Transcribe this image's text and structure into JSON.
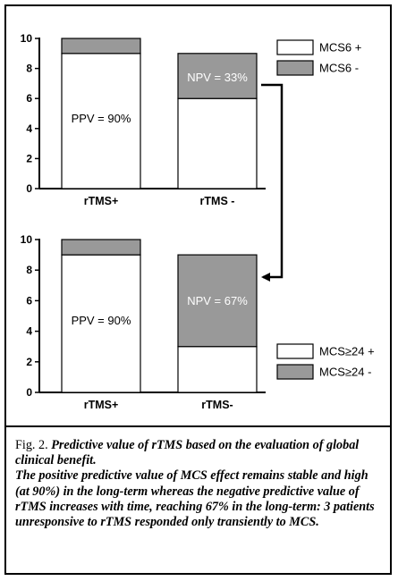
{
  "chart_data": [
    {
      "type": "bar",
      "stacked": true,
      "categories": [
        "rTMS+",
        "rTMS -"
      ],
      "series": [
        {
          "name": "MCS6 +",
          "values": [
            9,
            6
          ],
          "color": "#ffffff"
        },
        {
          "name": "MCS6 -",
          "values": [
            1,
            3
          ],
          "color": "#999999"
        }
      ],
      "ylim": [
        0,
        10
      ],
      "yticks": [
        "0",
        "2",
        "4",
        "6",
        "8",
        "10"
      ],
      "legend": "top-right",
      "annotations": [
        "PPV = 90%",
        "NPV = 33%"
      ]
    },
    {
      "type": "bar",
      "stacked": true,
      "categories": [
        "rTMS+",
        "rTMS-"
      ],
      "series": [
        {
          "name": "MCS≥24 +",
          "values": [
            9,
            3
          ],
          "color": "#ffffff"
        },
        {
          "name": "MCS≥24 -",
          "values": [
            1,
            6
          ],
          "color": "#999999"
        }
      ],
      "ylim": [
        0,
        10
      ],
      "yticks": [
        "0",
        "2",
        "4",
        "6",
        "8",
        "10"
      ],
      "legend": "bottom-right",
      "annotations": [
        "PPV = 90%",
        "NPV = 67%"
      ]
    }
  ],
  "caption": {
    "lead": "Fig. 2. ",
    "title": "Predictive value of rTMS based on the evaluation of global clinical benefit.",
    "body": "The positive predictive value of MCS effect remains stable and high (at 90%) in the long-term whereas the negative predictive value of rTMS increases with time, reaching 67% in the long-term: 3 patients unresponsive to rTMS responded only transiently to MCS."
  }
}
